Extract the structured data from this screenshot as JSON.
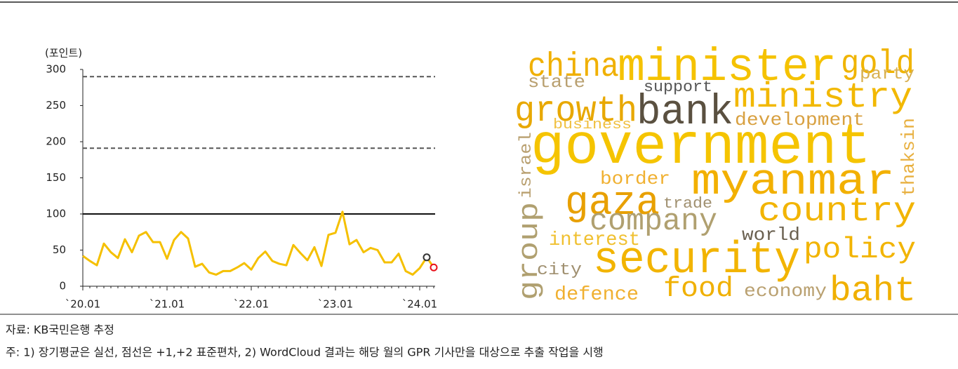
{
  "chart_data": {
    "type": "line",
    "ylabel": "(포인트)",
    "categories": [
      "`20.01",
      null,
      null,
      null,
      null,
      null,
      null,
      null,
      null,
      null,
      null,
      null,
      "`21.01",
      null,
      null,
      null,
      null,
      null,
      null,
      null,
      null,
      null,
      null,
      null,
      "`22.01",
      null,
      null,
      null,
      null,
      null,
      null,
      null,
      null,
      null,
      null,
      null,
      "`23.01",
      null,
      null,
      null,
      null,
      null,
      null,
      null,
      null,
      null,
      null,
      null,
      "`24.01",
      null,
      null
    ],
    "series": [
      {
        "color": "#f5c000",
        "style": "line",
        "values": [
          42,
          35,
          29,
          59,
          47,
          39,
          65,
          47,
          70,
          75,
          61,
          61,
          38,
          64,
          75,
          66,
          27,
          31,
          19,
          16,
          21,
          21,
          26,
          32,
          23,
          39,
          48,
          35,
          31,
          29,
          57,
          46,
          36,
          54,
          28,
          71,
          74,
          103,
          58,
          64,
          47,
          53,
          50,
          33,
          33,
          45,
          21,
          16,
          25,
          40,
          26
        ]
      },
      {
        "color": "#333333",
        "style": "marker",
        "values": [
          null,
          null,
          null,
          null,
          null,
          null,
          null,
          null,
          null,
          null,
          null,
          null,
          null,
          null,
          null,
          null,
          null,
          null,
          null,
          null,
          null,
          null,
          null,
          null,
          null,
          null,
          null,
          null,
          null,
          null,
          null,
          null,
          null,
          null,
          null,
          null,
          null,
          null,
          null,
          null,
          null,
          null,
          null,
          null,
          null,
          null,
          null,
          null,
          null,
          40,
          null
        ]
      },
      {
        "color": "#e8101a",
        "style": "marker",
        "values": [
          null,
          null,
          null,
          null,
          null,
          null,
          null,
          null,
          null,
          null,
          null,
          null,
          null,
          null,
          null,
          null,
          null,
          null,
          null,
          null,
          null,
          null,
          null,
          null,
          null,
          null,
          null,
          null,
          null,
          null,
          null,
          null,
          null,
          null,
          null,
          null,
          null,
          null,
          null,
          null,
          null,
          null,
          null,
          null,
          null,
          null,
          null,
          null,
          null,
          null,
          26
        ]
      }
    ],
    "reference_lines": [
      {
        "value": 100,
        "style": "solid"
      },
      {
        "value": 191,
        "style": "dashed"
      },
      {
        "value": 290,
        "style": "dashed"
      }
    ],
    "ylim": [
      0,
      300
    ],
    "yticks": [
      0,
      50,
      100,
      150,
      200,
      250,
      300
    ]
  },
  "wordcloud": {
    "words": [
      "china",
      "minister",
      "gold",
      "party",
      "state",
      "support",
      "ministry",
      "growth",
      "bank",
      "development",
      "business",
      "government",
      "thaksin",
      "israel",
      "border",
      "myanmar",
      "gaza",
      "trade",
      "country",
      "company",
      "group",
      "interest",
      "world",
      "policy",
      "security",
      "city",
      "food",
      "economy",
      "baht",
      "defence"
    ]
  },
  "notes": [
    "자료: KB국민은행 추정",
    "주: 1) 장기평균은 실선, 점선은 +1,+2 표준편차, 2) WordCloud 결과는 해당 월의 GPR 기사만을 대상으로 추출 작업을 시행"
  ]
}
